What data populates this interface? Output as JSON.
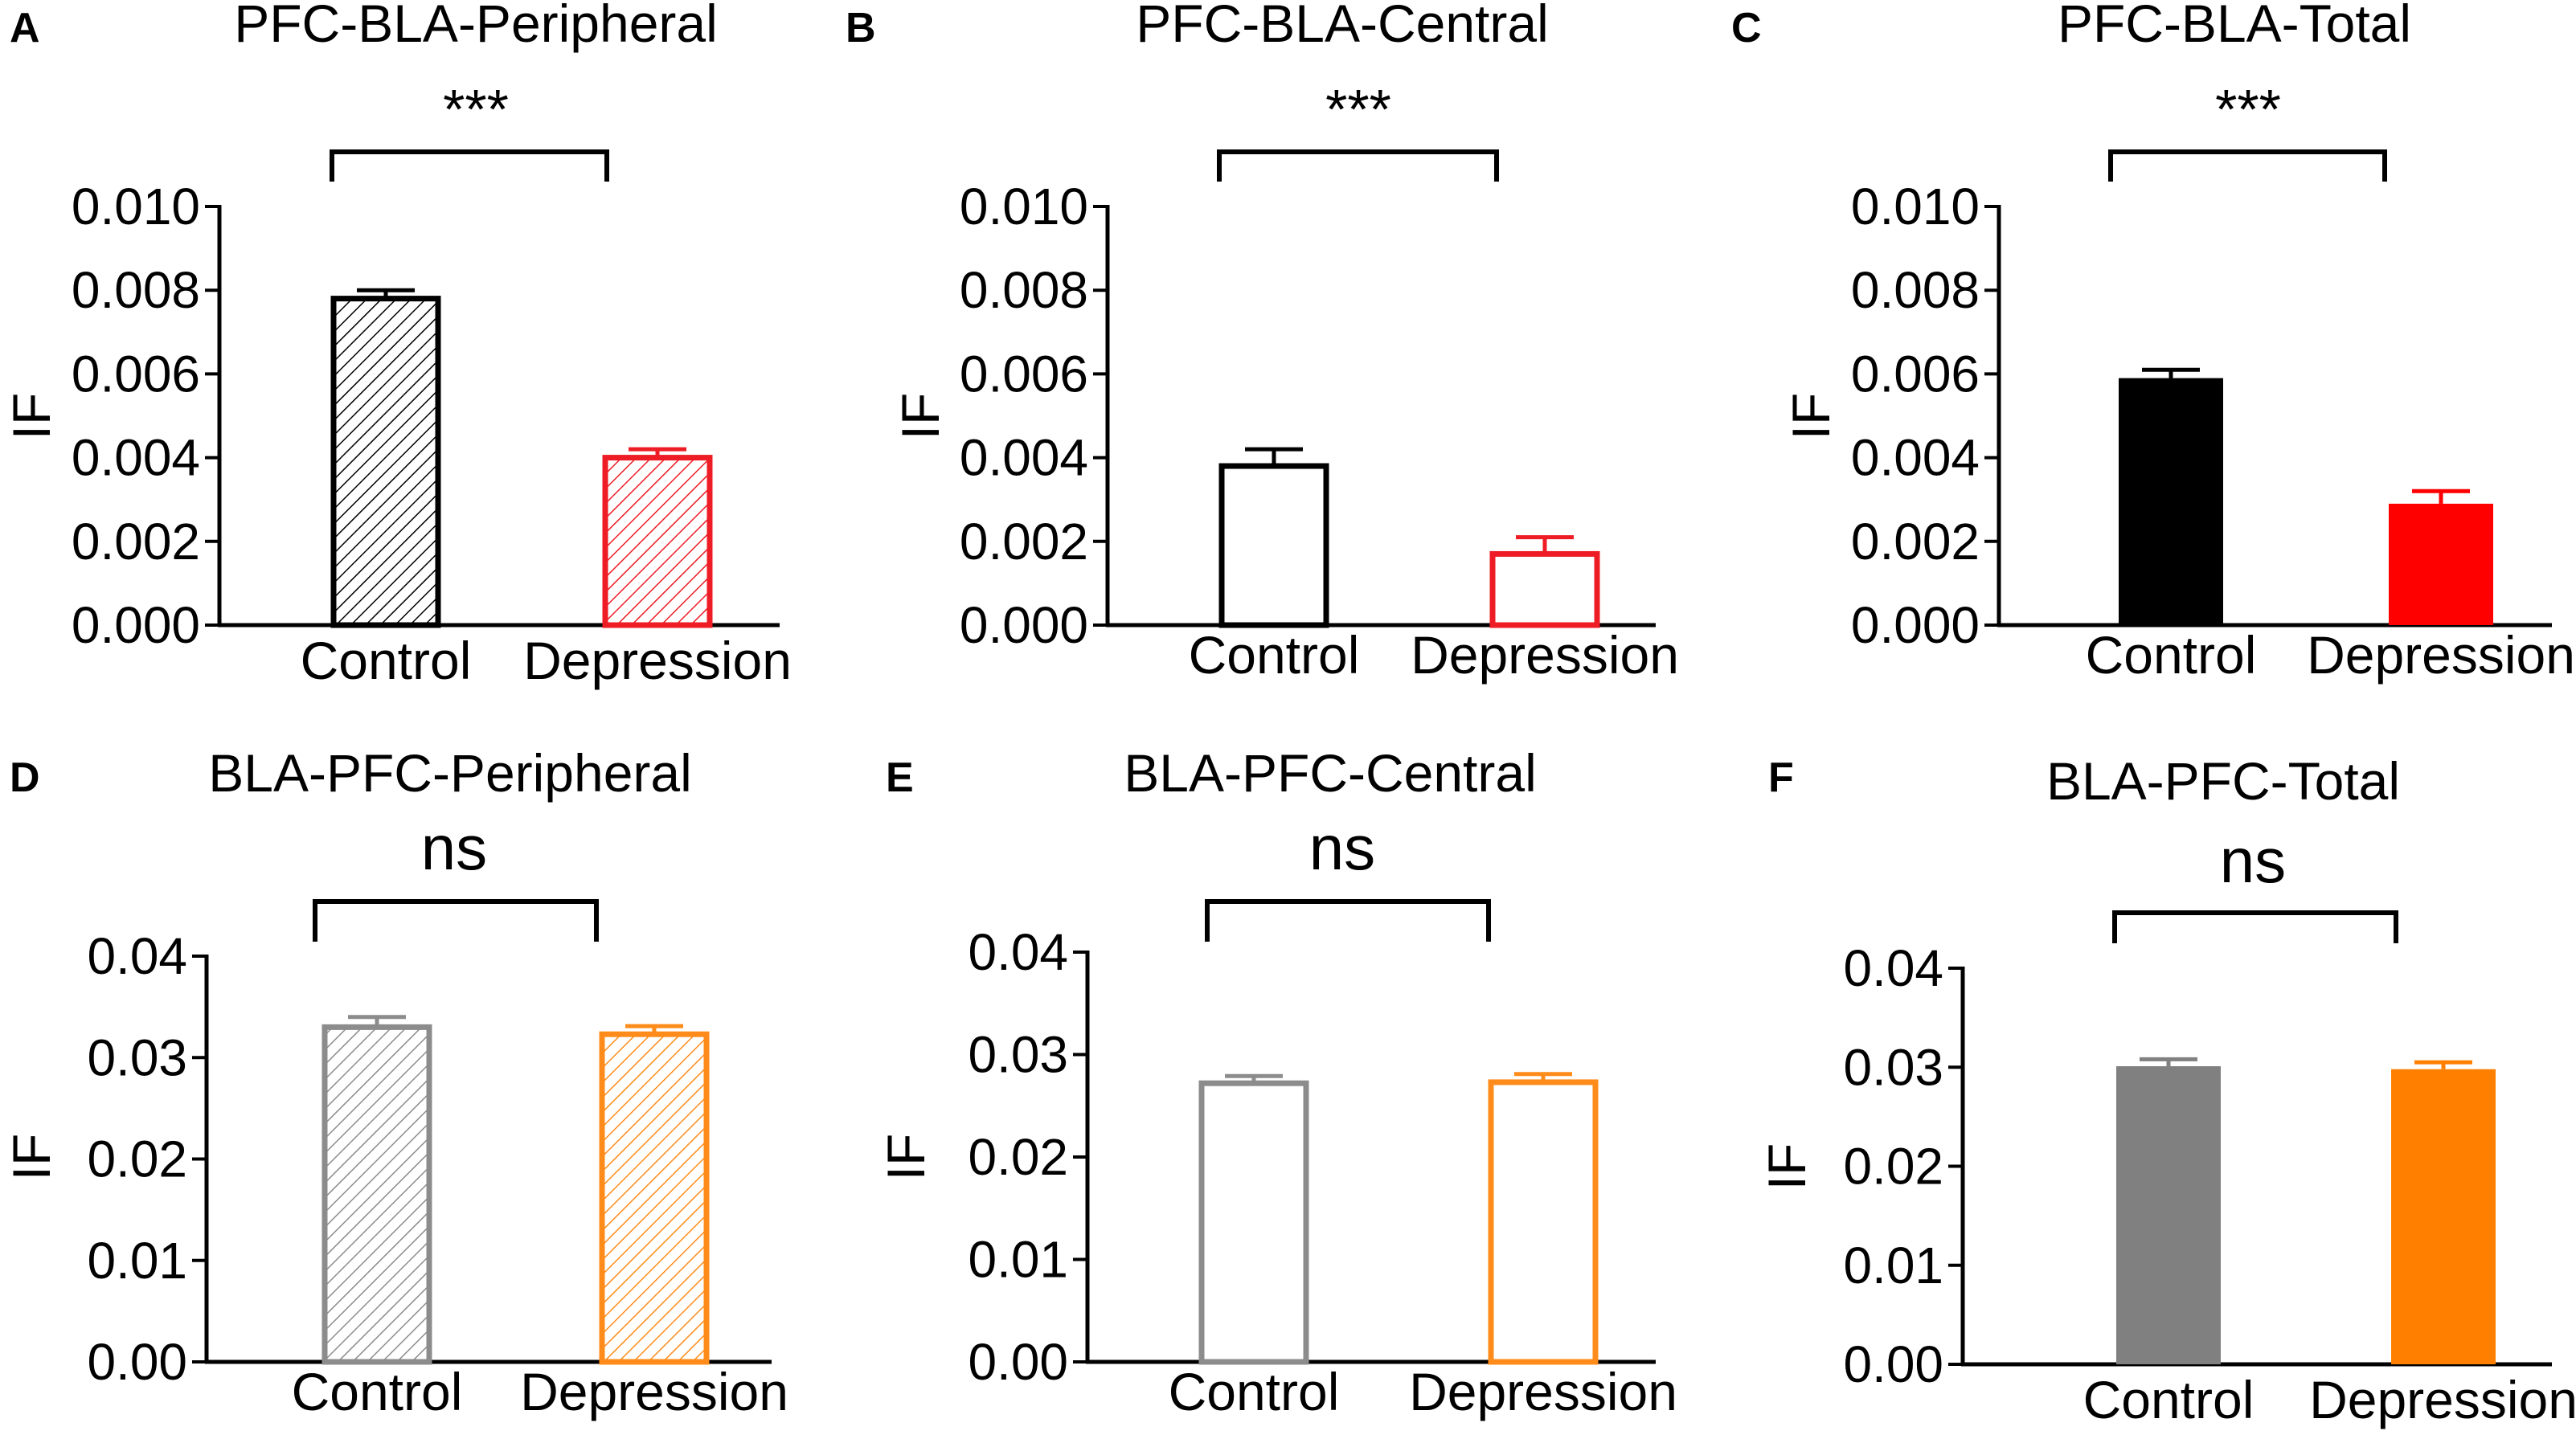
{
  "figure": {
    "description_panels": 6
  },
  "chart_data": [
    {
      "type": "bar",
      "panel": "A",
      "title": "PFC-BLA-Peripheral",
      "xlabel": "",
      "ylabel": "IF",
      "ylim": [
        0,
        0.01
      ],
      "yticks": [
        "0.000",
        "0.002",
        "0.004",
        "0.006",
        "0.008",
        "0.010"
      ],
      "categories": [
        "Control",
        "Depression"
      ],
      "values": [
        0.0078,
        0.004
      ],
      "errors": [
        0.0002,
        0.0002
      ],
      "colors": [
        "#000000",
        "#ee1c25"
      ],
      "fill": "hatch",
      "significance": "***"
    },
    {
      "type": "bar",
      "panel": "B",
      "title": "PFC-BLA-Central",
      "xlabel": "",
      "ylabel": "IF",
      "ylim": [
        0,
        0.01
      ],
      "yticks": [
        "0.000",
        "0.002",
        "0.004",
        "0.006",
        "0.008",
        "0.010"
      ],
      "categories": [
        "Control",
        "Depression"
      ],
      "values": [
        0.0038,
        0.0017
      ],
      "errors": [
        0.0004,
        0.0004
      ],
      "colors": [
        "#000000",
        "#ee1c25"
      ],
      "fill": "open",
      "significance": "***"
    },
    {
      "type": "bar",
      "panel": "C",
      "title": "PFC-BLA-Total",
      "xlabel": "",
      "ylabel": "IF",
      "ylim": [
        0,
        0.01
      ],
      "yticks": [
        "0.000",
        "0.002",
        "0.004",
        "0.006",
        "0.008",
        "0.010"
      ],
      "categories": [
        "Control",
        "Depression"
      ],
      "values": [
        0.0059,
        0.0029
      ],
      "errors": [
        0.0002,
        0.0003
      ],
      "colors": [
        "#000000",
        "#ff0000"
      ],
      "fill": "solid",
      "significance": "***"
    },
    {
      "type": "bar",
      "panel": "D",
      "title": "BLA-PFC-Peripheral",
      "xlabel": "",
      "ylabel": "IF",
      "ylim": [
        0,
        0.04
      ],
      "yticks": [
        "0.00",
        "0.01",
        "0.02",
        "0.03",
        "0.04"
      ],
      "categories": [
        "Control",
        "Depression"
      ],
      "values": [
        0.033,
        0.0323
      ],
      "errors": [
        0.001,
        0.0008
      ],
      "colors": [
        "#8c8c8c",
        "#ff8c1a"
      ],
      "fill": "hatch",
      "significance": "ns"
    },
    {
      "type": "bar",
      "panel": "E",
      "title": "BLA-PFC-Central",
      "xlabel": "",
      "ylabel": "IF",
      "ylim": [
        0,
        0.04
      ],
      "yticks": [
        "0.00",
        "0.01",
        "0.02",
        "0.03",
        "0.04"
      ],
      "categories": [
        "Control",
        "Depression"
      ],
      "values": [
        0.0272,
        0.0273
      ],
      "errors": [
        0.0007,
        0.0008
      ],
      "colors": [
        "#8c8c8c",
        "#ff8c1a"
      ],
      "fill": "open",
      "significance": "ns"
    },
    {
      "type": "bar",
      "panel": "F",
      "title": "BLA-PFC-Total",
      "xlabel": "",
      "ylabel": "IF",
      "ylim": [
        0,
        0.04
      ],
      "yticks": [
        "0.00",
        "0.01",
        "0.02",
        "0.03",
        "0.04"
      ],
      "categories": [
        "Control",
        "Depression"
      ],
      "values": [
        0.0301,
        0.0298
      ],
      "errors": [
        0.0007,
        0.0007
      ],
      "colors": [
        "#808080",
        "#ff8000"
      ],
      "fill": "solid",
      "significance": "ns"
    }
  ]
}
